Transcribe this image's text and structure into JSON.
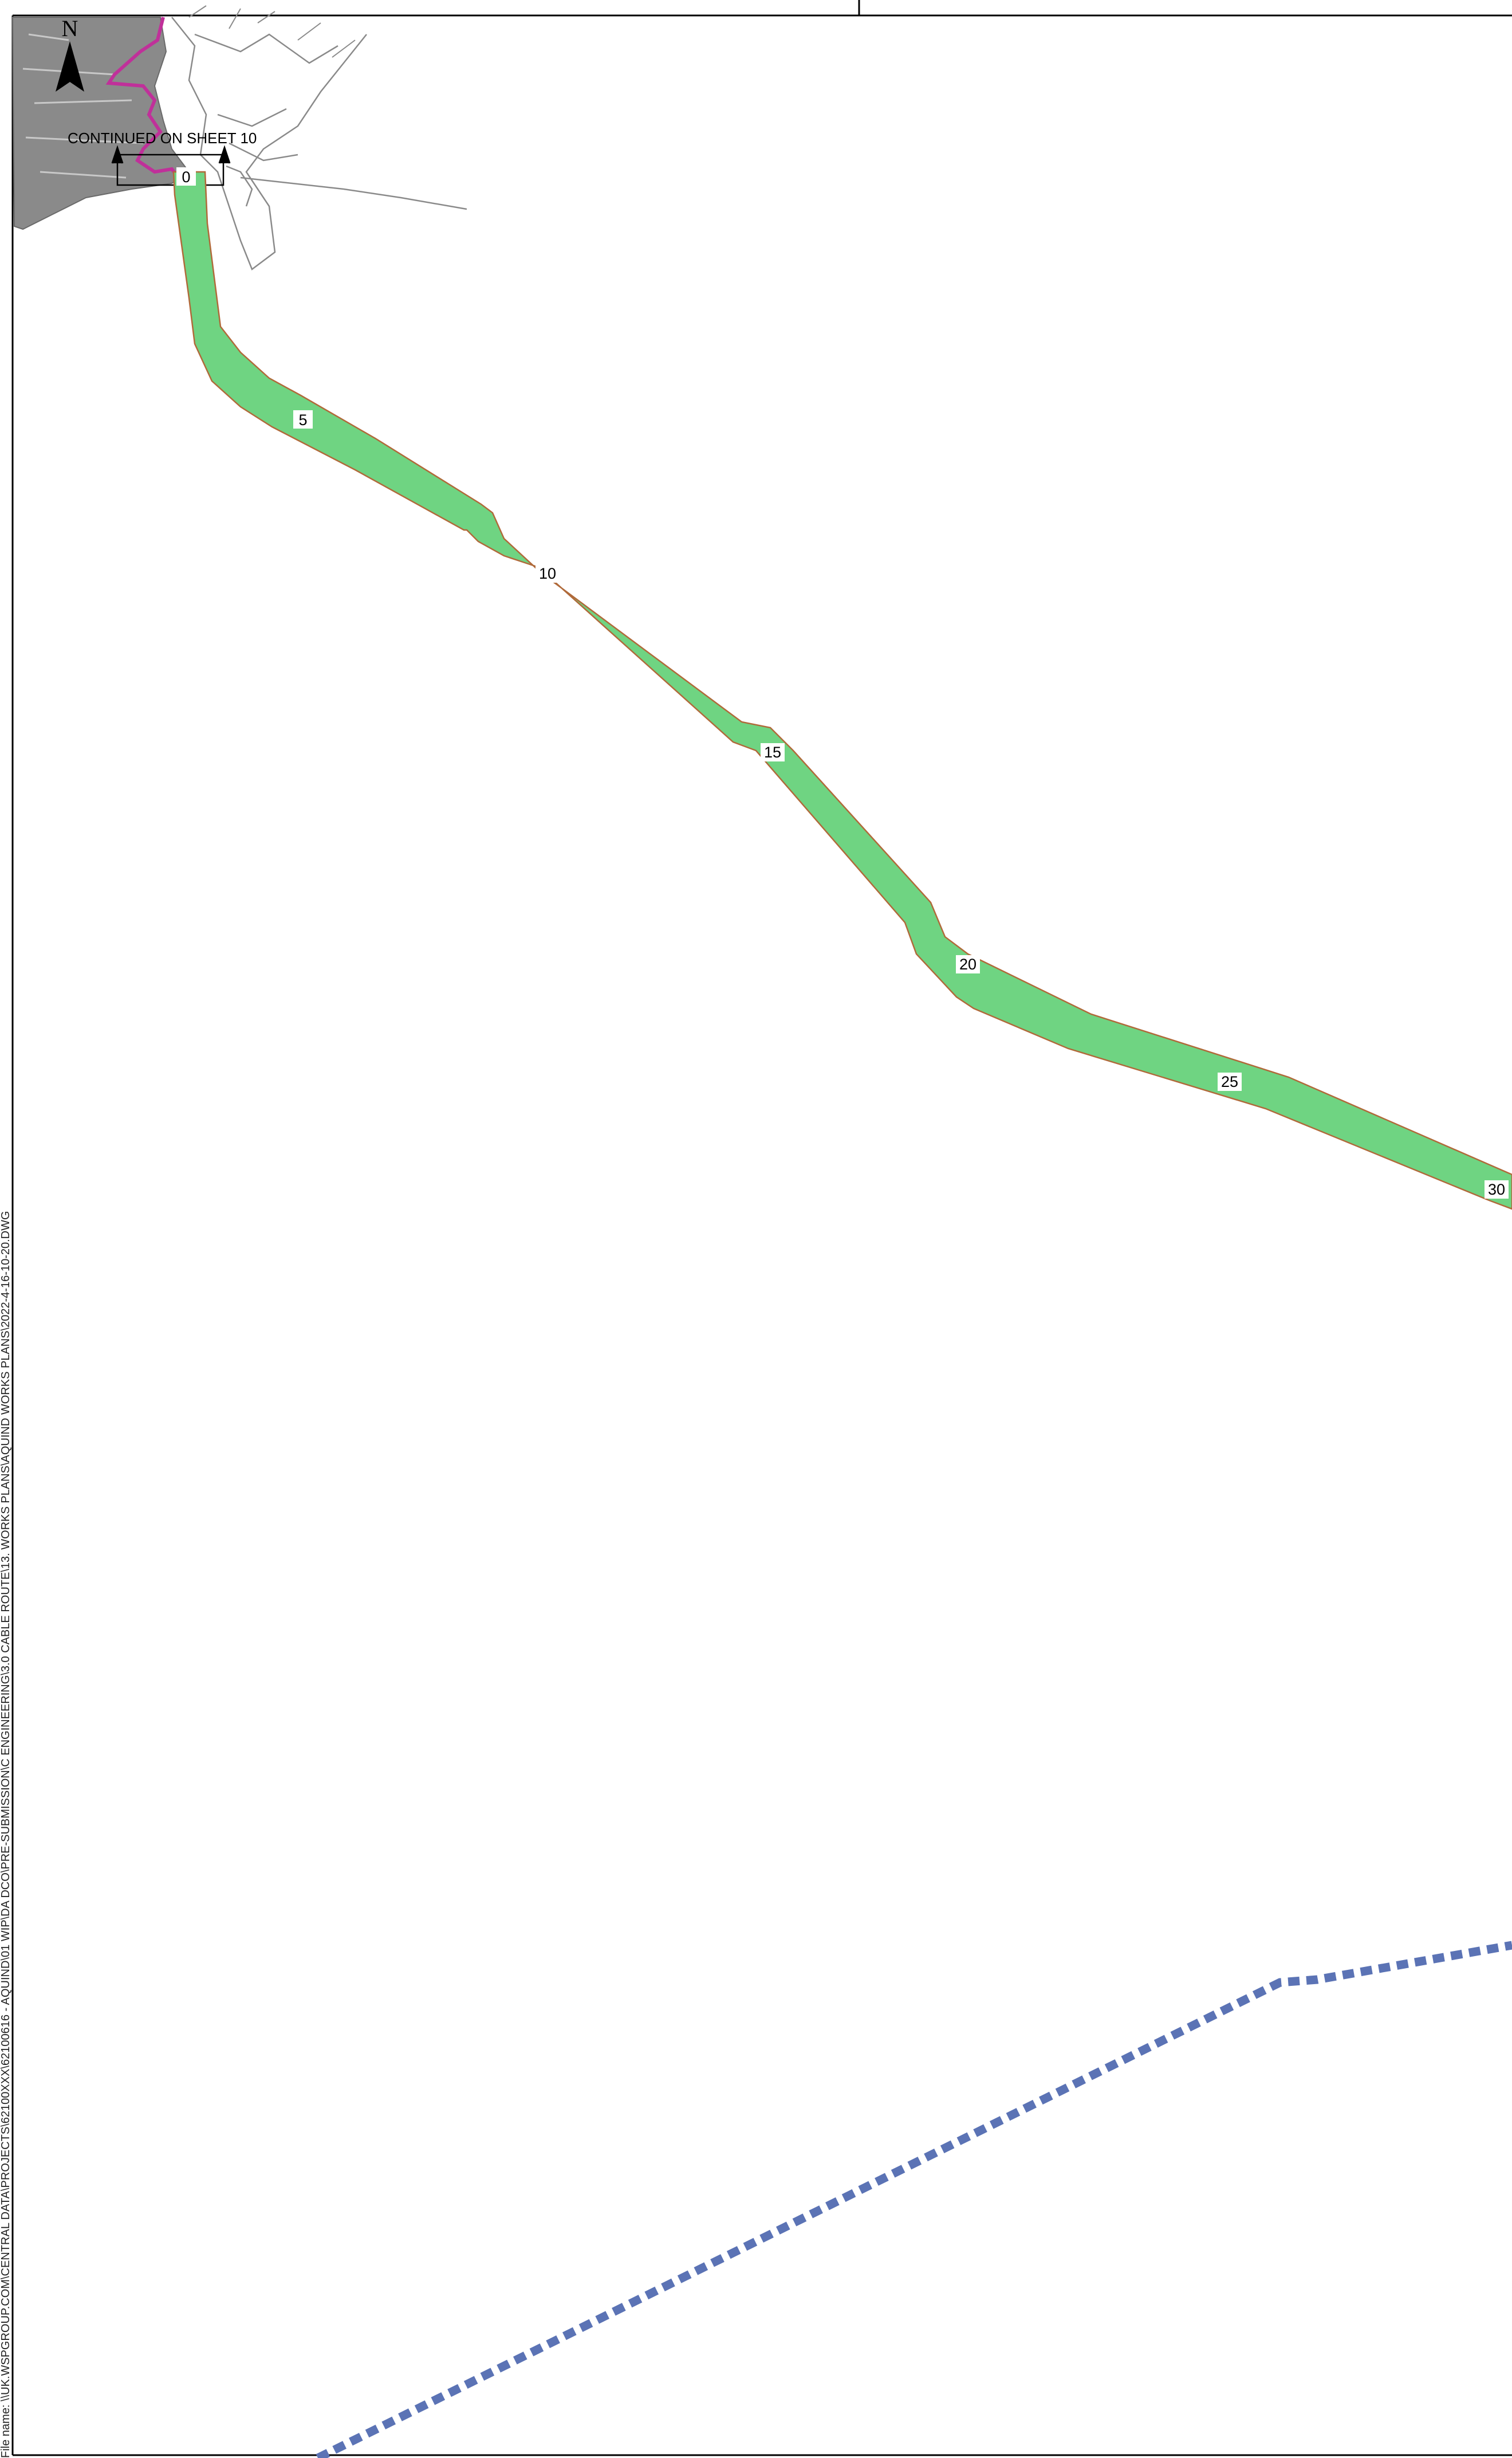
{
  "map": {
    "north_label": "N",
    "continuation_note": "CONTINUED ON SHEET 10",
    "file_path_text": "File name: \\\\UK.WSPGROUP.COM\\CENTRAL DATA\\PROJECTS\\62100XXX\\62100616 - AQUIND\\01 WIP\\DA DCO\\PRE-SUBMISSION\\C ENGINEERING\\3.0 CABLE ROUTE\\13. WORKS PLANS\\AQUIND WORKS PLANS\\2022-4-16-10-20.DWG",
    "route_chainages": [
      "0",
      "5",
      "10",
      "15",
      "20",
      "25",
      "30"
    ],
    "colors": {
      "cable_corridor_fill": "#6fd482",
      "cable_corridor_edge": "#b06a3a",
      "boundary_dashed": "#5b73b5",
      "landmass": "#8a8a8a",
      "onshore_route": "#c0309a",
      "frame": "#000000"
    },
    "icons": [
      "north-arrow-icon",
      "continuation-arrow-icon"
    ]
  }
}
